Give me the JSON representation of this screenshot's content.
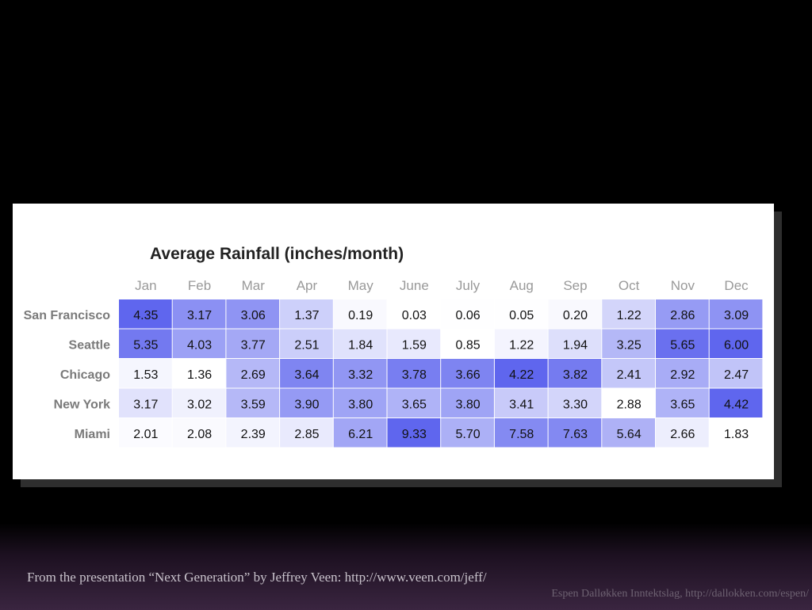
{
  "slide": {
    "caption": "From the presentation “Next Generation” by Jeffrey Veen: http://www.veen.com/jeff/",
    "credit": "Espen Dalløkken Inntektslag, http://dallokken.com/espen/"
  },
  "chart_data": {
    "type": "heatmap",
    "title": "Average Rainfall (inches/month)",
    "columns": [
      "Jan",
      "Feb",
      "Mar",
      "Apr",
      "May",
      "June",
      "July",
      "Aug",
      "Sep",
      "Oct",
      "Nov",
      "Dec"
    ],
    "rows": [
      "San Francisco",
      "Seattle",
      "Chicago",
      "New York",
      "Miami"
    ],
    "labels": [
      [
        "4.35",
        "3.17",
        "3.06",
        "1.37",
        "0.19",
        "0.03",
        "0.06",
        "0.05",
        "0.20",
        "1.22",
        "2.86",
        "3.09"
      ],
      [
        "5.35",
        "4.03",
        "3.77",
        "2.51",
        "1.84",
        "1.59",
        "0.85",
        "1.22",
        "1.94",
        "3.25",
        "5.65",
        "6.00"
      ],
      [
        "1.53",
        "1.36",
        "2.69",
        "3.64",
        "3.32",
        "3.78",
        "3.66",
        "4.22",
        "3.82",
        "2.41",
        "2.92",
        "2.47"
      ],
      [
        "3.17",
        "3.02",
        "3.59",
        "3.90",
        "3.80",
        "3.65",
        "3.80",
        "3.41",
        "3.30",
        "2.88",
        "3.65",
        "4.42"
      ],
      [
        "2.01",
        "2.08",
        "2.39",
        "2.85",
        "6.21",
        "9.33",
        "5.70",
        "7.58",
        "7.63",
        "5.64",
        "2.66",
        "1.83"
      ]
    ],
    "values": [
      [
        4.35,
        3.17,
        3.06,
        1.37,
        0.19,
        0.03,
        0.06,
        0.05,
        0.2,
        1.22,
        2.86,
        3.09
      ],
      [
        5.35,
        4.03,
        3.77,
        2.51,
        1.84,
        1.59,
        0.85,
        1.22,
        1.94,
        3.25,
        5.65,
        6.0
      ],
      [
        1.53,
        1.36,
        2.69,
        3.64,
        3.32,
        3.78,
        3.66,
        4.22,
        3.82,
        2.41,
        2.92,
        2.47
      ],
      [
        3.17,
        3.02,
        3.59,
        3.9,
        3.8,
        3.65,
        3.8,
        3.41,
        3.3,
        2.88,
        3.65,
        4.42
      ],
      [
        2.01,
        2.08,
        2.39,
        2.85,
        6.21,
        9.33,
        5.7,
        7.58,
        7.63,
        5.64,
        2.66,
        1.83
      ]
    ],
    "color_scale": "row-relative",
    "color_low": "#ffffff",
    "color_high": "#5f66ee",
    "text_color": "#111111",
    "header_color": "#999999",
    "row_label_color": "#7a7a7a"
  }
}
